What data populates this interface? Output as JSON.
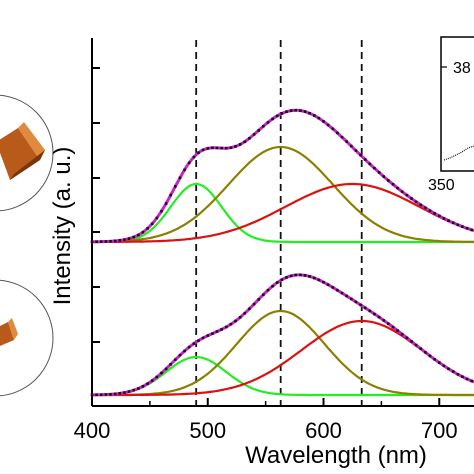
{
  "chart_data": {
    "type": "line",
    "xlabel": "Wavelength (nm)",
    "ylabel": "Intensity (a. u.)",
    "xlim": [
      400,
      730
    ],
    "x_ticks": [
      400,
      500,
      600,
      700
    ],
    "x_tick_labels": [
      "400",
      "500",
      "600",
      "700"
    ],
    "reference_lines_x": [
      490,
      563,
      633
    ],
    "panels": [
      {
        "name": "",
        "gaussian_components": [
          {
            "color": "#22ee22",
            "center": 490,
            "sigma": 22
          },
          {
            "color": "#8b8000",
            "center": 563,
            "sigma": 45
          },
          {
            "color": "#dd1111",
            "center": 625,
            "sigma": 58
          }
        ]
      },
      {
        "name": "",
        "gaussian_components": [
          {
            "color": "#22ee22",
            "center": 490,
            "sigma": 26
          },
          {
            "color": "#8b8000",
            "center": 563,
            "sigma": 38
          },
          {
            "color": "#dd1111",
            "center": 633,
            "sigma": 52
          }
        ]
      }
    ],
    "series": [
      {
        "name": "",
        "panel": 0,
        "color": "#22ee22",
        "x": [
          400,
          420,
          440,
          460,
          480,
          490,
          500,
          520,
          540,
          560,
          580,
          600,
          650,
          700,
          730
        ],
        "y": [
          0.0,
          0.01,
          0.07,
          0.36,
          0.9,
          1.0,
          0.9,
          0.36,
          0.07,
          0.01,
          0.0,
          0.0,
          0.0,
          0.0,
          0.0
        ]
      },
      {
        "name": "",
        "panel": 0,
        "color": "#8b8000",
        "x": [
          400,
          430,
          460,
          490,
          520,
          540,
          563,
          590,
          620,
          650,
          680,
          710,
          730
        ],
        "y": [
          0.0,
          0.01,
          0.07,
          0.27,
          0.63,
          0.87,
          1.0,
          0.84,
          0.45,
          0.16,
          0.04,
          0.01,
          0.0
        ]
      },
      {
        "name": "",
        "panel": 0,
        "color": "#dd1111",
        "x": [
          400,
          450,
          500,
          550,
          600,
          625,
          650,
          700,
          730
        ],
        "y": [
          0.0,
          0.03,
          0.1,
          0.43,
          0.91,
          1.0,
          0.91,
          0.43,
          0.17
        ]
      },
      {
        "name": "",
        "panel": 1,
        "color": "#22ee22",
        "x": [
          400,
          430,
          460,
          490,
          520,
          550,
          580,
          730
        ],
        "y": [
          0.0,
          0.07,
          0.51,
          1.0,
          0.51,
          0.07,
          0.0,
          0.0
        ]
      },
      {
        "name": "",
        "panel": 1,
        "color": "#8b8000",
        "x": [
          400,
          450,
          500,
          530,
          563,
          600,
          630,
          670,
          700,
          730
        ],
        "y": [
          0.0,
          0.02,
          0.25,
          0.69,
          1.0,
          0.62,
          0.21,
          0.02,
          0.0,
          0.0
        ]
      },
      {
        "name": "",
        "panel": 1,
        "color": "#dd1111",
        "x": [
          400,
          480,
          530,
          580,
          633,
          680,
          730
        ],
        "y": [
          0.0,
          0.03,
          0.14,
          0.59,
          1.0,
          0.65,
          0.17
        ]
      }
    ],
    "fit_color": "#cc22cc",
    "data_marker_color": "#111111",
    "grid": false,
    "inset": {
      "tick_labels": [
        "38",
        "350"
      ]
    }
  }
}
